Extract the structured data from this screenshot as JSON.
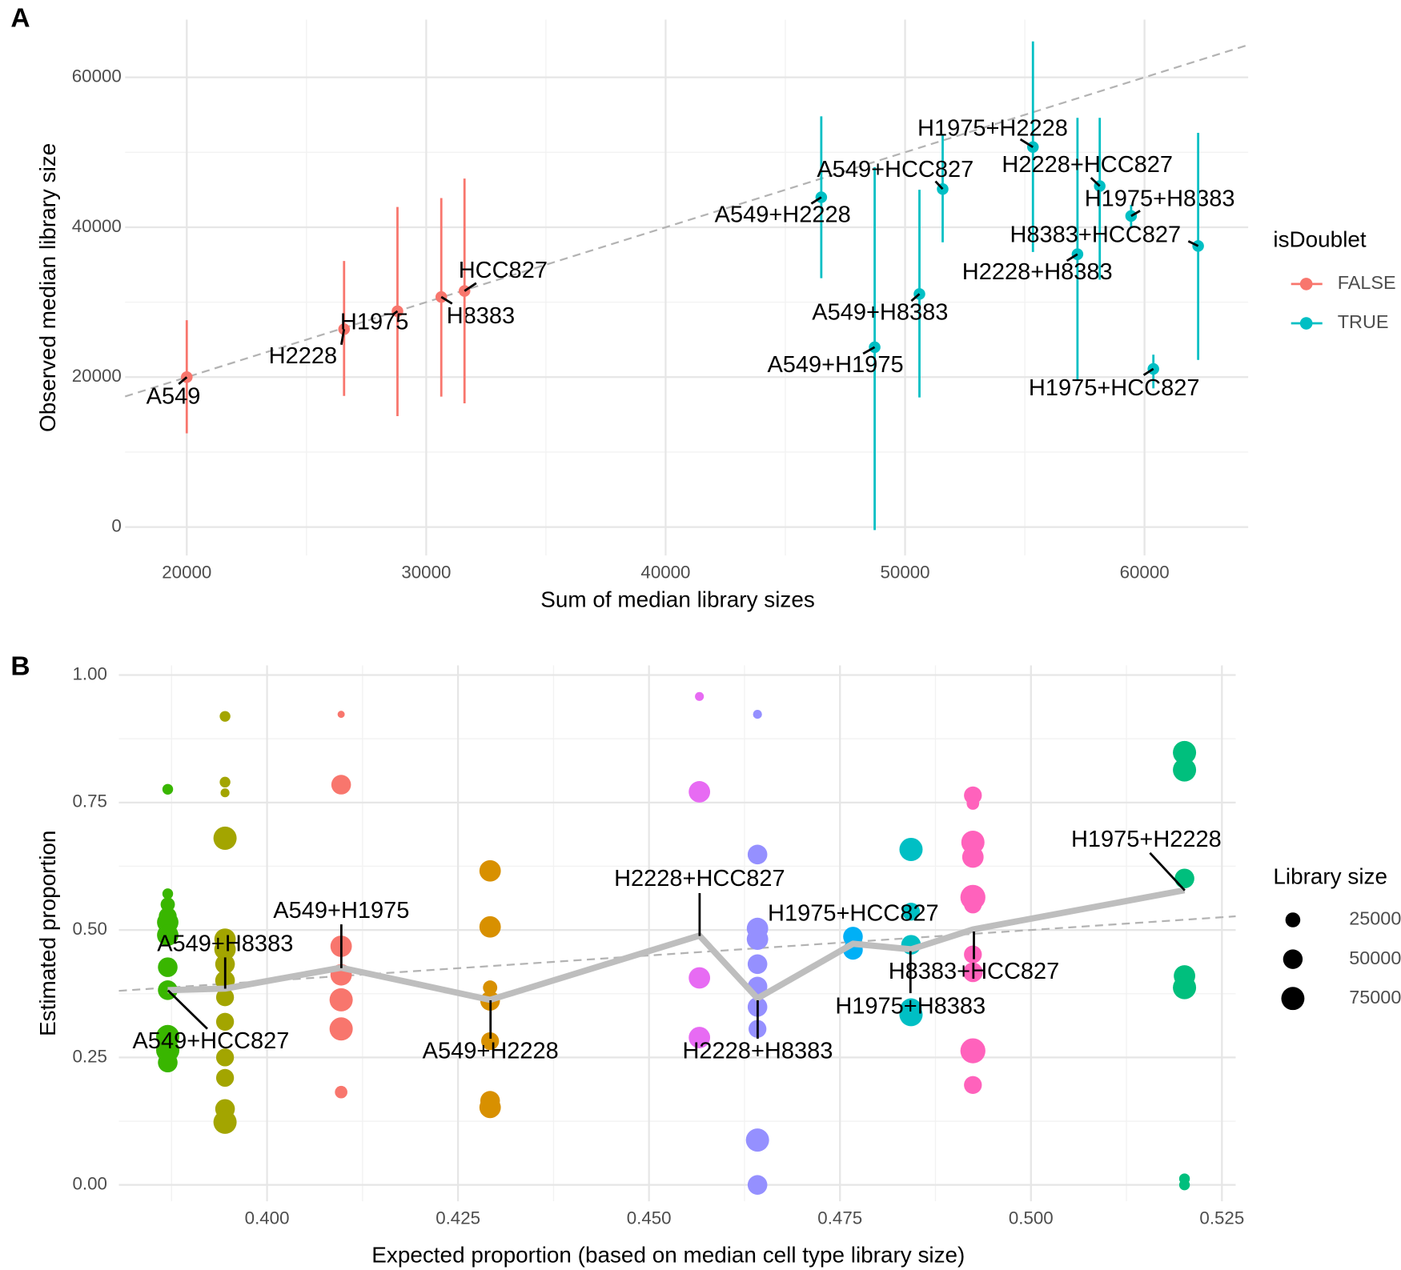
{
  "chart_data": [
    {
      "type": "scatter",
      "panel": "A",
      "x_label": "Sum of median library sizes",
      "y_label": "Observed median library size",
      "xlim": [
        17425,
        64330
      ],
      "ylim": [
        -3800,
        67700
      ],
      "xticks": [
        20000,
        30000,
        40000,
        50000,
        60000
      ],
      "yticks": [
        0,
        20000,
        40000,
        60000
      ],
      "minor_xticks": [
        25000,
        35000,
        45000,
        55000
      ],
      "minor_yticks": [
        10000,
        30000,
        50000
      ],
      "grid": true,
      "identity_line": true,
      "legend_title": "isDoublet",
      "legend_position": "right",
      "series": [
        {
          "name": "FALSE",
          "color": "#F8766D",
          "labels": [
            "A549",
            "H2228",
            "H1975",
            "H8383",
            "HCC827"
          ],
          "x": [
            20000,
            26570,
            28800,
            30630,
            31600
          ],
          "values": [
            20000,
            26400,
            28800,
            30700,
            31500
          ],
          "lower": [
            12500,
            17500,
            14800,
            17400,
            16500
          ],
          "upper": [
            27600,
            35500,
            42700,
            43900,
            46500
          ]
        },
        {
          "name": "TRUE",
          "color": "#00BFC4",
          "labels": [
            "A549+H2228",
            "A549+H1975",
            "A549+H8383",
            "A549+HCC827",
            "H1975+H2228",
            "H2228+H8383",
            "H2228+HCC827",
            "H1975+H8383",
            "H8383+HCC827",
            "H1975+HCC827"
          ],
          "x": [
            46500,
            48730,
            50600,
            51570,
            55340,
            57200,
            58130,
            59440,
            62240,
            60370
          ],
          "values": [
            44000,
            24000,
            31100,
            45100,
            50700,
            36400,
            45500,
            41500,
            37500,
            21100
          ],
          "lower": [
            33200,
            -400,
            17300,
            38000,
            36700,
            19600,
            33000,
            40000,
            22300,
            18500
          ],
          "upper": [
            54800,
            48000,
            45000,
            52400,
            64800,
            54600,
            54600,
            43000,
            52600,
            23000
          ]
        }
      ]
    },
    {
      "type": "bubble",
      "panel": "B",
      "x_label": "Expected proportion (based on median cell type library size)",
      "y_label": "Estimated proportion",
      "xlim": [
        0.3806,
        0.5268
      ],
      "ylim": [
        -0.032,
        1.019
      ],
      "xticks": [
        {
          "value": 0.4,
          "label": "0.400"
        },
        {
          "value": 0.425,
          "label": "0.425"
        },
        {
          "value": 0.45,
          "label": "0.450"
        },
        {
          "value": 0.475,
          "label": "0.475"
        },
        {
          "value": 0.5,
          "label": "0.500"
        },
        {
          "value": 0.525,
          "label": "0.525"
        }
      ],
      "yticks": [
        {
          "value": 0,
          "label": "0.00"
        },
        {
          "value": 0.25,
          "label": "0.25"
        },
        {
          "value": 0.5,
          "label": "0.50"
        },
        {
          "value": 0.75,
          "label": "0.75"
        },
        {
          "value": 1,
          "label": "1.00"
        }
      ],
      "minor_xticks": [
        0.3875,
        0.4125,
        0.4375,
        0.4625,
        0.4875,
        0.5125
      ],
      "minor_yticks": [
        0.125,
        0.375,
        0.625,
        0.875
      ],
      "grid": true,
      "identity_line": true,
      "legend_title": "Library size",
      "legend_position": "right",
      "size_legend": [
        25000,
        50000,
        75000
      ],
      "mean_line": {
        "color": "#bebebe",
        "values": [
          0.382,
          0.385,
          0.426,
          0.363,
          0.489,
          0.366,
          0.473,
          0.462,
          0.501,
          0.578
        ]
      },
      "series": [
        {
          "name": "A549+HCC827",
          "color": "#39B600",
          "x": [
            0.387,
            0.387,
            0.387,
            0.387,
            0.387,
            0.387,
            0.387,
            0.387,
            0.387,
            0.387,
            0.387
          ],
          "values": [
            0.776,
            0.571,
            0.55,
            0.527,
            0.515,
            0.49,
            0.427,
            0.382,
            0.291,
            0.264,
            0.24
          ],
          "sizes": [
            10000,
            10000,
            22500,
            40000,
            62500,
            62500,
            50625,
            50625,
            75625,
            75625,
            50625
          ]
        },
        {
          "name": "A549+H8383",
          "color": "#A3A500",
          "x": [
            0.3945,
            0.3945,
            0.3945,
            0.3945,
            0.3945,
            0.3945,
            0.3945,
            0.3945,
            0.3945,
            0.3945,
            0.3945,
            0.3945,
            0.3945,
            0.3945
          ],
          "values": [
            0.919,
            0.79,
            0.769,
            0.68,
            0.482,
            0.462,
            0.433,
            0.401,
            0.368,
            0.32,
            0.25,
            0.21,
            0.149,
            0.123
          ],
          "sizes": [
            10000,
            10000,
            5625,
            75625,
            62500,
            62500,
            50625,
            50625,
            40000,
            40000,
            40000,
            40000,
            50625,
            75625
          ]
        },
        {
          "name": "A549+H1975",
          "color": "#F8766D",
          "x": [
            0.4097,
            0.4097,
            0.4097,
            0.4097,
            0.4097,
            0.4097,
            0.4097,
            0.4097
          ],
          "values": [
            0.923,
            0.785,
            0.468,
            0.462,
            0.412,
            0.363,
            0.306,
            0.182
          ],
          "sizes": [
            2500,
            50625,
            62500,
            22500,
            62500,
            75625,
            75625,
            15625
          ]
        },
        {
          "name": "A549+H2228",
          "color": "#D89000",
          "x": [
            0.4292,
            0.4292,
            0.4292,
            0.4292,
            0.4292,
            0.4292,
            0.4292
          ],
          "values": [
            0.616,
            0.506,
            0.387,
            0.361,
            0.282,
            0.165,
            0.152
          ],
          "sizes": [
            62500,
            62500,
            22500,
            50625,
            40000,
            50625,
            62500
          ]
        },
        {
          "name": "H2228+HCC827",
          "color": "#E76BF3",
          "x": [
            0.4566,
            0.4566,
            0.4566,
            0.4566
          ],
          "values": [
            0.958,
            0.771,
            0.406,
            0.289
          ],
          "sizes": [
            5625,
            62500,
            62500,
            62500
          ]
        },
        {
          "name": "H2228+H8383",
          "color": "#9590FF",
          "x": [
            0.4642,
            0.4642,
            0.4642,
            0.4642,
            0.4642,
            0.4642,
            0.4642,
            0.4642,
            0.4642,
            0.4642
          ],
          "values": [
            0.923,
            0.648,
            0.503,
            0.482,
            0.433,
            0.389,
            0.349,
            0.306,
            0.088,
            0
          ],
          "sizes": [
            5625,
            50625,
            62500,
            62500,
            50625,
            50625,
            50625,
            40000,
            75625,
            50625
          ]
        },
        {
          "name": "H1975+HCC827",
          "color": "#00B0F6",
          "x": [
            0.4767,
            0.4767
          ],
          "values": [
            0.487,
            0.461
          ],
          "sizes": [
            50625,
            50625
          ]
        },
        {
          "name": "H1975+H8383",
          "color": "#00BFC4",
          "x": [
            0.4843,
            0.4843,
            0.4843,
            0.4843,
            0.4843
          ],
          "values": [
            0.658,
            0.536,
            0.471,
            0.345,
            0.334
          ],
          "sizes": [
            75625,
            40000,
            50625,
            62500,
            75625
          ]
        },
        {
          "name": "H8383+HCC827",
          "color": "#FF62BC",
          "x": [
            0.4924,
            0.4924,
            0.4924,
            0.4924,
            0.4924,
            0.4924,
            0.4924,
            0.4924,
            0.4924,
            0.4924
          ],
          "values": [
            0.764,
            0.748,
            0.672,
            0.643,
            0.564,
            0.55,
            0.452,
            0.417,
            0.263,
            0.196
          ],
          "sizes": [
            40000,
            15625,
            75625,
            62500,
            90000,
            40000,
            40000,
            50625,
            90000,
            40000
          ]
        },
        {
          "name": "H1975+H2228",
          "color": "#00BF7D",
          "x": [
            0.5201,
            0.5201,
            0.5201,
            0.5201,
            0.5201,
            0.5201,
            0.5201
          ],
          "values": [
            0.848,
            0.814,
            0.601,
            0.41,
            0.387,
            0.012,
            0
          ],
          "sizes": [
            75625,
            75625,
            50625,
            62500,
            75625,
            10000,
            10000
          ]
        }
      ]
    }
  ]
}
